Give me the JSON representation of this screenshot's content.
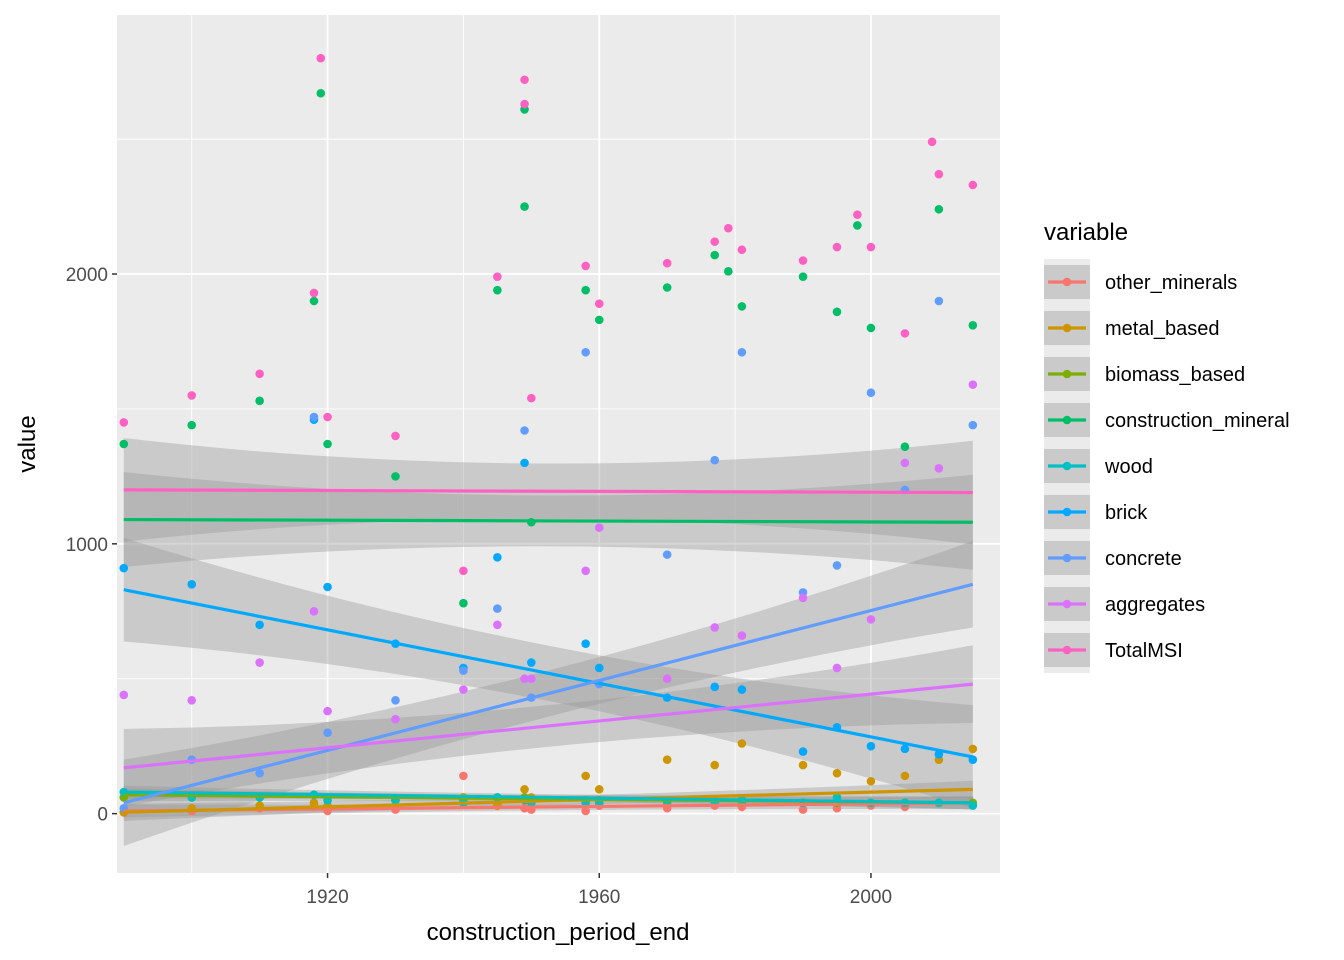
{
  "chart_data": {
    "type": "scatter",
    "xlabel": "construction_period_end",
    "ylabel": "value",
    "xlim": [
      1889,
      2019
    ],
    "ylim": [
      -220,
      2960
    ],
    "x_ticks": [
      1920,
      1960,
      2000
    ],
    "x_tick_labels": [
      "1920",
      "1960",
      "2000"
    ],
    "y_ticks": [
      0,
      1000,
      2000
    ],
    "y_tick_labels": [
      "0",
      "1000",
      "2000"
    ],
    "grid": true,
    "legend": {
      "title": "variable",
      "position": "right"
    },
    "x_groups": [
      1890,
      1900,
      1910,
      1918,
      1920,
      1930,
      1940,
      1945,
      1949,
      1950,
      1958,
      1960,
      1970,
      1977,
      1981,
      1990,
      1995,
      2000,
      2005,
      2010,
      2015
    ],
    "series": [
      {
        "name": "other_minerals",
        "color": "#F8766D",
        "x": [
          1890,
          1900,
          1910,
          1918,
          1920,
          1930,
          1940,
          1945,
          1949,
          1950,
          1958,
          1960,
          1970,
          1977,
          1981,
          1990,
          1995,
          2000,
          2005,
          2010,
          2015
        ],
        "values": [
          5,
          10,
          20,
          25,
          10,
          15,
          140,
          30,
          20,
          15,
          10,
          30,
          20,
          30,
          25,
          15,
          20,
          30,
          25,
          40,
          30
        ],
        "trend": [
          10,
          40
        ],
        "ci": 15
      },
      {
        "name": "metal_based",
        "color": "#CD9600",
        "x": [
          1890,
          1900,
          1910,
          1918,
          1920,
          1930,
          1940,
          1945,
          1949,
          1950,
          1958,
          1960,
          1970,
          1977,
          1981,
          1990,
          1995,
          2000,
          2005,
          2010,
          2015
        ],
        "values": [
          5,
          20,
          30,
          40,
          30,
          50,
          60,
          30,
          90,
          60,
          140,
          90,
          200,
          180,
          260,
          180,
          150,
          120,
          140,
          200,
          240
        ],
        "trend": [
          5,
          90
        ],
        "ci": 20
      },
      {
        "name": "biomass_based",
        "color": "#7CAE00",
        "x": [
          1890,
          1900,
          1910,
          1918,
          1920,
          1930,
          1940,
          1945,
          1949,
          1950,
          1958,
          1960,
          1970,
          1977,
          1981,
          1990,
          1995,
          2000,
          2005,
          2010,
          2015
        ],
        "values": [
          60,
          60,
          60,
          70,
          60,
          50,
          50,
          60,
          60,
          50,
          50,
          50,
          40,
          50,
          40,
          40,
          40,
          40,
          40,
          40,
          40
        ],
        "trend": [
          70,
          40
        ],
        "ci": 15
      },
      {
        "name": "construction_mineral",
        "color": "#00BE67",
        "x": [
          1890,
          1900,
          1910,
          1918,
          1919,
          1920,
          1930,
          1940,
          1945,
          1949,
          1949,
          1950,
          1958,
          1960,
          1970,
          1977,
          1979,
          1981,
          1990,
          1995,
          1998,
          2000,
          2005,
          2010,
          2015
        ],
        "values": [
          1370,
          1440,
          1530,
          1900,
          2670,
          1370,
          1250,
          780,
          1940,
          2610,
          2250,
          1080,
          1940,
          1830,
          1950,
          2070,
          2010,
          1880,
          1990,
          1860,
          2180,
          1800,
          1360,
          2240,
          1810
        ],
        "trend": [
          1090,
          1080
        ],
        "ci": 110
      },
      {
        "name": "wood",
        "color": "#00BFC4",
        "x": [
          1890,
          1900,
          1910,
          1918,
          1920,
          1930,
          1940,
          1945,
          1949,
          1950,
          1958,
          1960,
          1970,
          1977,
          1981,
          1990,
          1995,
          2000,
          2005,
          2010,
          2015
        ],
        "values": [
          80,
          60,
          60,
          70,
          50,
          50,
          40,
          60,
          50,
          40,
          40,
          40,
          50,
          40,
          50,
          40,
          60,
          40,
          40,
          40,
          30
        ],
        "trend": [
          80,
          40
        ],
        "ci": 15
      },
      {
        "name": "brick",
        "color": "#00A9FF",
        "x": [
          1890,
          1900,
          1910,
          1918,
          1920,
          1930,
          1940,
          1945,
          1949,
          1950,
          1958,
          1960,
          1970,
          1977,
          1981,
          1990,
          1995,
          2000,
          2005,
          2010,
          2015
        ],
        "values": [
          910,
          850,
          700,
          1460,
          840,
          630,
          540,
          950,
          1300,
          560,
          630,
          540,
          430,
          470,
          460,
          230,
          320,
          250,
          240,
          220,
          200
        ],
        "trend": [
          830,
          210
        ],
        "ci": 120
      },
      {
        "name": "concrete",
        "color": "#619CFF",
        "x": [
          1890,
          1900,
          1910,
          1918,
          1920,
          1930,
          1940,
          1945,
          1949,
          1950,
          1958,
          1960,
          1970,
          1977,
          1981,
          1990,
          1995,
          2000,
          2005,
          2010,
          2015
        ],
        "values": [
          20,
          200,
          150,
          1470,
          300,
          420,
          530,
          760,
          1420,
          430,
          1710,
          480,
          960,
          1310,
          1710,
          820,
          920,
          1560,
          1200,
          1900,
          1440
        ],
        "trend": [
          40,
          850
        ],
        "ci": 100
      },
      {
        "name": "aggregates",
        "color": "#DB72FB",
        "x": [
          1890,
          1900,
          1910,
          1918,
          1920,
          1930,
          1940,
          1945,
          1949,
          1950,
          1958,
          1960,
          1970,
          1977,
          1981,
          1990,
          1995,
          2000,
          2005,
          2010,
          2015
        ],
        "values": [
          440,
          420,
          560,
          750,
          380,
          350,
          460,
          700,
          500,
          500,
          900,
          1060,
          500,
          690,
          660,
          800,
          540,
          720,
          1300,
          1280,
          1590
        ],
        "trend": [
          170,
          480
        ],
        "ci": 90
      },
      {
        "name": "TotalMSI",
        "color": "#FF61C3",
        "x": [
          1890,
          1900,
          1910,
          1918,
          1919,
          1920,
          1930,
          1940,
          1945,
          1949,
          1949,
          1950,
          1958,
          1960,
          1970,
          1977,
          1979,
          1981,
          1990,
          1995,
          1998,
          2000,
          2005,
          2009,
          2010,
          2015
        ],
        "values": [
          1450,
          1550,
          1630,
          1930,
          2800,
          1470,
          1400,
          900,
          1990,
          2720,
          2630,
          1540,
          2030,
          1890,
          2040,
          2120,
          2170,
          2090,
          2050,
          2100,
          2220,
          2100,
          1780,
          2490,
          2370,
          2330
        ],
        "trend": [
          1200,
          1190
        ],
        "ci": 120
      }
    ]
  }
}
